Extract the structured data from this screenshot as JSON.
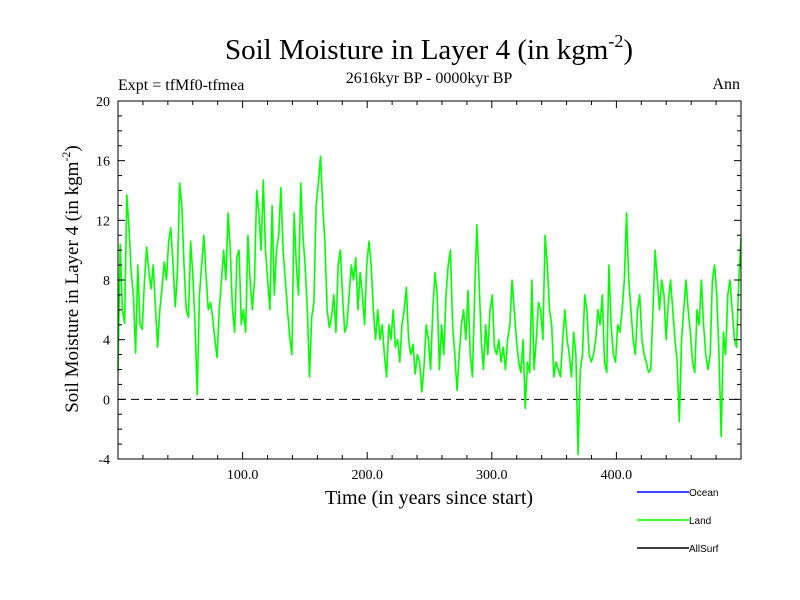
{
  "chart_data": {
    "type": "line",
    "title": "Soil Moisture in Layer 4 (in kgm",
    "title_sup": "-2",
    "title_close": ")",
    "subtitle": "2616kyr BP - 0000kyr BP",
    "expt_label": "Expt = tfMf0-tfmea",
    "period_label": "Ann",
    "xlabel": "Time (in years since start)",
    "ylabel": "Soil Moisture in Layer 4 (in kgm",
    "ylabel_sup": "-2",
    "ylabel_close": ")",
    "xlim": [
      0,
      500
    ],
    "ylim": [
      -4,
      20
    ],
    "x_ticks": [
      100,
      200,
      300,
      400
    ],
    "x_tick_labels": [
      "100.0",
      "200.0",
      "300.0",
      "400.0"
    ],
    "y_ticks": [
      -4,
      0,
      4,
      8,
      12,
      16,
      20
    ],
    "y_tick_labels": [
      "-4",
      "0",
      "4",
      "8",
      "12",
      "16",
      "20"
    ],
    "zero_line": 0,
    "legend": [
      {
        "name": "Ocean",
        "color": "#0000ff"
      },
      {
        "name": "Land",
        "color": "#00ff00"
      },
      {
        "name": "AllSurf",
        "color": "#000000"
      }
    ],
    "series": [
      {
        "name": "Land",
        "color": "#00ff00",
        "x_start": 0,
        "x_end": 500,
        "values": [
          1.9,
          10.4,
          6.0,
          5.1,
          13.7,
          11.5,
          8.5,
          7.0,
          3.1,
          9.0,
          5.0,
          4.7,
          7.9,
          10.2,
          8.6,
          7.4,
          9.0,
          6.2,
          3.5,
          6.0,
          7.5,
          9.2,
          8.0,
          10.6,
          11.5,
          9.0,
          6.2,
          8.5,
          14.5,
          13.0,
          9.0,
          6.0,
          5.5,
          10.6,
          8.3,
          5.0,
          0.3,
          7.0,
          9.0,
          11.0,
          8.3,
          6.0,
          6.5,
          5.5,
          4.0,
          2.8,
          6.0,
          8.0,
          10.0,
          8.0,
          12.5,
          10.0,
          6.0,
          4.5,
          9.5,
          10.0,
          5.0,
          6.0,
          4.5,
          11.0,
          8.0,
          6.0,
          8.0,
          14.0,
          12.5,
          10.0,
          14.7,
          10.0,
          8.0,
          6.0,
          13.0,
          7.0,
          10.0,
          11.0,
          14.2,
          10.0,
          8.0,
          6.0,
          4.2,
          3.0,
          12.5,
          9.0,
          7.0,
          14.5,
          11.0,
          9.0,
          6.0,
          1.5,
          5.5,
          6.5,
          13.0,
          14.5,
          16.3,
          13.0,
          10.5,
          6.0,
          4.8,
          5.5,
          7.0,
          4.5,
          9.0,
          10.0,
          7.0,
          4.5,
          5.0,
          7.0,
          9.0,
          8.0,
          9.5,
          6.0,
          8.5,
          7.0,
          5.0,
          9.0,
          10.6,
          9.0,
          6.0,
          4.0,
          6.0,
          4.0,
          5.0,
          3.0,
          1.5,
          5.0,
          4.0,
          6.0,
          3.5,
          4.0,
          2.5,
          5.0,
          6.0,
          7.5,
          4.0,
          3.0,
          3.7,
          1.7,
          3.0,
          2.5,
          0.5,
          2.2,
          5.0,
          4.0,
          2.0,
          6.0,
          8.5,
          7.0,
          2.0,
          5.0,
          3.0,
          7.0,
          9.0,
          10.0,
          5.0,
          3.0,
          0.6,
          3.0,
          5.0,
          6.0,
          4.0,
          7.3,
          3.0,
          1.5,
          7.0,
          11.7,
          8.0,
          4.0,
          2.0,
          5.0,
          3.0,
          6.0,
          7.0,
          3.5,
          3.0,
          4.0,
          2.5,
          3.5,
          2.0,
          4.0,
          5.0,
          8.0,
          6.0,
          4.0,
          2.5,
          1.8,
          4.0,
          -0.6,
          2.5,
          1.8,
          8.0,
          2.0,
          4.0,
          6.5,
          6.0,
          4.0,
          11.0,
          9.0,
          6.0,
          5.0,
          1.5,
          2.5,
          2.0,
          1.5,
          4.0,
          6.0,
          4.0,
          3.0,
          1.5,
          4.5,
          3.0,
          -3.7,
          2.0,
          3.0,
          7.0,
          6.0,
          3.0,
          2.5,
          3.0,
          4.0,
          6.0,
          5.0,
          7.0,
          2.5,
          1.8,
          9.0,
          5.0,
          3.0,
          2.5,
          5.0,
          4.5,
          6.0,
          8.0,
          12.5,
          8.0,
          6.0,
          4.0,
          3.0,
          6.0,
          7.0,
          4.0,
          3.0,
          2.5,
          1.8,
          2.0,
          6.0,
          10.0,
          8.0,
          6.0,
          8.0,
          7.0,
          4.0,
          6.5,
          8.0,
          6.0,
          4.0,
          2.5,
          -1.5,
          4.0,
          6.0,
          8.0,
          6.0,
          4.5,
          2.5,
          1.8,
          6.0,
          5.0,
          8.0,
          5.0,
          3.0,
          2.0,
          3.0,
          8.0,
          9.0,
          7.0,
          3.0,
          -2.5,
          4.5,
          3.0,
          7.0,
          8.0,
          6.0,
          4.0,
          3.5,
          8.0,
          10.8
        ]
      }
    ]
  }
}
